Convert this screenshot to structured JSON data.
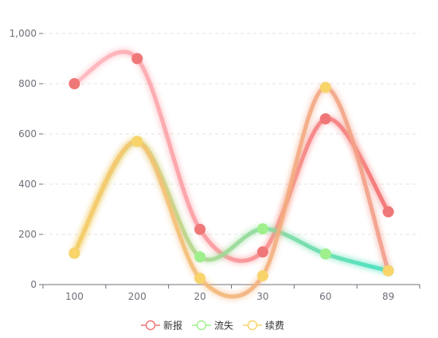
{
  "chart_data": {
    "type": "line",
    "smooth": true,
    "categories": [
      "100",
      "200",
      "20",
      "30",
      "60",
      "89"
    ],
    "ylim": [
      0,
      1000
    ],
    "yticks": [
      0,
      200,
      400,
      600,
      800,
      1000
    ],
    "ytick_labels": [
      "0",
      "200",
      "400",
      "600",
      "800",
      "1,000"
    ],
    "grid": "horizontal dashed",
    "legend_position": "bottom-center",
    "series": [
      {
        "name": "新报",
        "values": [
          800,
          900,
          220,
          130,
          660,
          290
        ],
        "color": "#ef7d7d",
        "gradient": [
          "#ffb9c1",
          "#f46f6f"
        ]
      },
      {
        "name": "流失",
        "values": [
          125,
          570,
          110,
          222,
          122,
          55
        ],
        "color": "#4fdcb8",
        "gradient": [
          "#f5d36c",
          "#3ee0bf"
        ]
      },
      {
        "name": "续费",
        "values": [
          125,
          570,
          25,
          35,
          785,
          55
        ],
        "color": "#f3c867",
        "gradient": [
          "#f6cf6b",
          "#f39c8a"
        ]
      }
    ],
    "marker_colors": {
      "新报": "#ef7777",
      "流失": "#9ff08d",
      "续费": "#f8d46b"
    }
  }
}
